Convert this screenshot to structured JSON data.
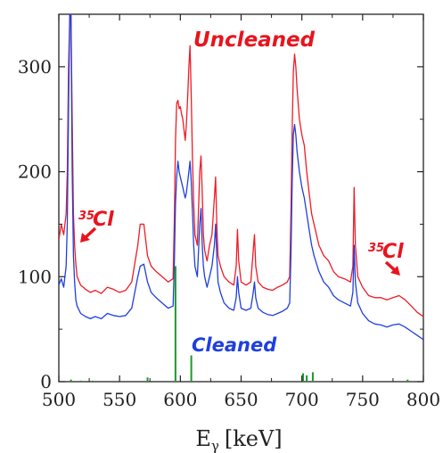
{
  "chart_data": {
    "type": "line",
    "xlabel": "E",
    "xlabel_sub": "γ",
    "xlabel_unit": "[keV]",
    "ylabel": "",
    "xlim": [
      500,
      800
    ],
    "ylim": [
      0,
      350
    ],
    "x_ticks": [
      500,
      550,
      600,
      650,
      700,
      750,
      800
    ],
    "y_ticks": [
      0,
      100,
      200,
      300
    ],
    "annotations": {
      "uncleaned": "Uncleaned",
      "cleaned": "Cleaned",
      "cl_left_sup": "35",
      "cl_left": "Cl",
      "cl_right_sup": "35",
      "cl_right": "Cl"
    },
    "series": [
      {
        "name": "Uncleaned",
        "color": "#ee1c25",
        "x": [
          500,
          502,
          504,
          506,
          507,
          508,
          509,
          510,
          511,
          512,
          513,
          514,
          515,
          518,
          522,
          526,
          530,
          535,
          540,
          545,
          550,
          555,
          560,
          565,
          567,
          570,
          573,
          576,
          580,
          585,
          590,
          594,
          595,
          596,
          597,
          598,
          599,
          600,
          601,
          602,
          603,
          604,
          605,
          606,
          607,
          608,
          609,
          610,
          611,
          612,
          614,
          616,
          617,
          618,
          619,
          620,
          622,
          624,
          626,
          628,
          629,
          630,
          631,
          633,
          636,
          640,
          644,
          646,
          647,
          648,
          650,
          654,
          658,
          660,
          661,
          662,
          664,
          668,
          672,
          676,
          680,
          684,
          688,
          690,
          691,
          692,
          693,
          694,
          695,
          696,
          698,
          700,
          702,
          704,
          706,
          708,
          710,
          714,
          718,
          722,
          726,
          730,
          735,
          740,
          742,
          743,
          744,
          746,
          750,
          755,
          760,
          765,
          770,
          775,
          780,
          785,
          790,
          795,
          800
        ],
        "values": [
          135,
          150,
          140,
          160,
          200,
          300,
          350,
          350,
          250,
          160,
          130,
          112,
          100,
          92,
          88,
          85,
          87,
          84,
          90,
          88,
          85,
          87,
          95,
          130,
          150,
          150,
          120,
          110,
          105,
          100,
          95,
          98,
          150,
          230,
          265,
          268,
          260,
          262,
          255,
          250,
          240,
          230,
          245,
          270,
          300,
          320,
          270,
          210,
          170,
          140,
          130,
          200,
          215,
          180,
          140,
          125,
          115,
          130,
          140,
          175,
          195,
          150,
          120,
          110,
          100,
          95,
          92,
          110,
          145,
          115,
          95,
          92,
          95,
          125,
          140,
          110,
          95,
          90,
          88,
          87,
          90,
          92,
          95,
          100,
          160,
          240,
          295,
          312,
          300,
          280,
          250,
          235,
          225,
          200,
          180,
          160,
          150,
          130,
          120,
          115,
          105,
          100,
          98,
          95,
          110,
          185,
          130,
          100,
          90,
          82,
          80,
          80,
          78,
          80,
          82,
          78,
          72,
          66,
          62
        ]
      },
      {
        "name": "Cleaned",
        "color": "#1f3fe0",
        "x": [
          500,
          502,
          504,
          506,
          507,
          508,
          509,
          510,
          511,
          512,
          513,
          514,
          515,
          518,
          522,
          526,
          530,
          535,
          540,
          545,
          550,
          555,
          560,
          565,
          567,
          570,
          573,
          576,
          580,
          585,
          590,
          594,
          595,
          596,
          597,
          598,
          599,
          600,
          601,
          602,
          603,
          604,
          605,
          606,
          607,
          608,
          609,
          610,
          611,
          612,
          614,
          616,
          617,
          618,
          619,
          620,
          622,
          624,
          626,
          628,
          629,
          630,
          631,
          633,
          636,
          640,
          644,
          646,
          647,
          648,
          650,
          654,
          658,
          660,
          661,
          662,
          664,
          668,
          672,
          676,
          680,
          684,
          688,
          690,
          691,
          692,
          693,
          694,
          695,
          696,
          698,
          700,
          702,
          704,
          706,
          708,
          710,
          714,
          718,
          722,
          726,
          730,
          735,
          740,
          742,
          743,
          744,
          746,
          750,
          755,
          760,
          765,
          770,
          775,
          780,
          785,
          790,
          795,
          800
        ],
        "values": [
          92,
          98,
          90,
          110,
          150,
          260,
          350,
          350,
          200,
          120,
          95,
          78,
          72,
          65,
          62,
          60,
          62,
          60,
          65,
          63,
          62,
          63,
          70,
          100,
          110,
          112,
          95,
          85,
          80,
          75,
          70,
          72,
          110,
          170,
          195,
          210,
          200,
          195,
          190,
          185,
          180,
          175,
          180,
          190,
          200,
          210,
          190,
          160,
          130,
          110,
          100,
          150,
          165,
          130,
          110,
          100,
          90,
          100,
          110,
          130,
          150,
          120,
          95,
          85,
          75,
          70,
          68,
          80,
          100,
          85,
          70,
          68,
          70,
          85,
          95,
          80,
          70,
          66,
          64,
          63,
          65,
          67,
          70,
          75,
          120,
          190,
          235,
          245,
          235,
          220,
          200,
          185,
          175,
          160,
          145,
          130,
          120,
          105,
          95,
          90,
          82,
          78,
          75,
          72,
          85,
          130,
          95,
          75,
          65,
          58,
          55,
          54,
          52,
          54,
          55,
          52,
          48,
          44,
          40
        ]
      },
      {
        "name": "",
        "color": "#1a9a2a",
        "type": "impulse",
        "x": [
          510,
          518,
          528,
          573,
          596,
          609,
          701,
          704,
          709,
          787
        ],
        "values": [
          2,
          1,
          1,
          4,
          110,
          25,
          8,
          6,
          9,
          2
        ]
      }
    ]
  }
}
